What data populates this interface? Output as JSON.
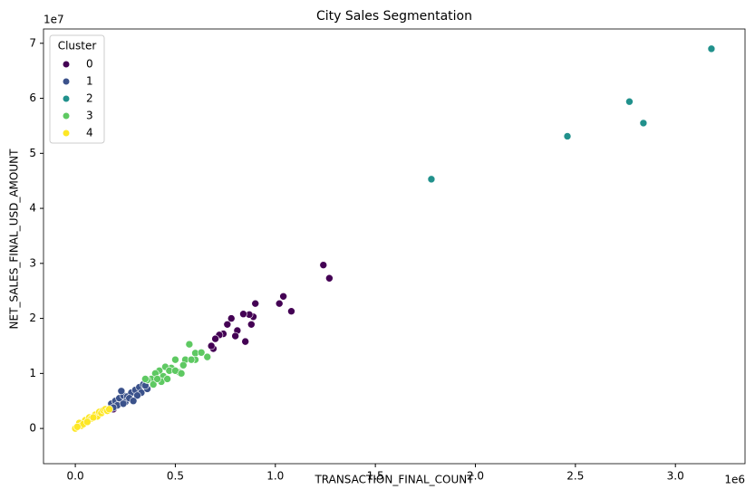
{
  "chart_data": {
    "type": "scatter",
    "title": "City Sales Segmentation",
    "x_label": "TRANSACTION_FINAL_COUNT",
    "y_label": "NET_SALES_FINAL_USD_AMOUNT",
    "x_offset_label": "1e6",
    "y_offset_label": "1e7",
    "legend_title": "Cluster",
    "legend": "upper left",
    "xlim": [
      -0.159,
      3.348
    ],
    "ylim": [
      -0.64,
      7.26
    ],
    "xticks": [
      {
        "value": 0,
        "label": "0.0"
      },
      {
        "value": 0.5,
        "label": "0.5"
      },
      {
        "value": 1,
        "label": "1.0"
      },
      {
        "value": 1.5,
        "label": "1.5"
      },
      {
        "value": 2,
        "label": "2.0"
      },
      {
        "value": 2.5,
        "label": "2.5"
      },
      {
        "value": 3,
        "label": "3.0"
      }
    ],
    "yticks": [
      0,
      1,
      2,
      3,
      4,
      5,
      6,
      7
    ],
    "series": [
      {
        "name": "0",
        "color": "#440154",
        "x": [
          1.24,
          1.27,
          1.04,
          1.02,
          1.08,
          0.9,
          0.89,
          0.87,
          0.84,
          0.88,
          0.78,
          0.76,
          0.74,
          0.72,
          0.7,
          0.69,
          0.68,
          0.81,
          0.8,
          0.85,
          0.19
        ],
        "values": [
          2.97,
          2.73,
          2.4,
          2.27,
          2.13,
          2.27,
          2.03,
          2.07,
          2.08,
          1.89,
          2.0,
          1.89,
          1.72,
          1.7,
          1.63,
          1.45,
          1.5,
          1.78,
          1.68,
          1.58,
          0.35
        ]
      },
      {
        "name": "1",
        "color": "#3b528b",
        "x": [
          0.18,
          0.2,
          0.22,
          0.24,
          0.26,
          0.28,
          0.3,
          0.32,
          0.34,
          0.33,
          0.36,
          0.25,
          0.21,
          0.23,
          0.27,
          0.31,
          0.35,
          0.29,
          0.19,
          0.24
        ],
        "values": [
          0.45,
          0.5,
          0.55,
          0.6,
          0.58,
          0.65,
          0.7,
          0.75,
          0.8,
          0.65,
          0.72,
          0.48,
          0.42,
          0.68,
          0.55,
          0.6,
          0.78,
          0.5,
          0.38,
          0.45
        ]
      },
      {
        "name": "2",
        "color": "#21918c",
        "x": [
          1.78,
          2.46,
          2.77,
          2.84,
          3.18
        ],
        "values": [
          4.53,
          5.31,
          5.94,
          5.55,
          6.9
        ]
      },
      {
        "name": "3",
        "color": "#5ec962",
        "x": [
          0.57,
          0.6,
          0.63,
          0.6,
          0.66,
          0.55,
          0.5,
          0.54,
          0.52,
          0.48,
          0.45,
          0.42,
          0.4,
          0.38,
          0.36,
          0.44,
          0.47,
          0.43,
          0.39,
          0.35,
          0.5,
          0.53,
          0.46,
          0.41,
          0.58
        ],
        "values": [
          1.53,
          1.37,
          1.38,
          1.25,
          1.3,
          1.25,
          1.25,
          1.15,
          1.02,
          1.1,
          1.12,
          1.05,
          1.0,
          0.9,
          0.88,
          0.95,
          1.05,
          0.85,
          0.8,
          0.9,
          1.05,
          1.0,
          0.9,
          0.9,
          1.25
        ]
      },
      {
        "name": "4",
        "color": "#fde725",
        "x": [
          0.0,
          0.02,
          0.03,
          0.05,
          0.07,
          0.08,
          0.1,
          0.11,
          0.12,
          0.13,
          0.14,
          0.15,
          0.16,
          0.17,
          0.04,
          0.09,
          0.06,
          0.01
        ],
        "values": [
          0.0,
          0.1,
          0.05,
          0.15,
          0.2,
          0.18,
          0.25,
          0.22,
          0.3,
          0.28,
          0.33,
          0.35,
          0.32,
          0.35,
          0.08,
          0.2,
          0.12,
          0.03
        ]
      }
    ]
  }
}
